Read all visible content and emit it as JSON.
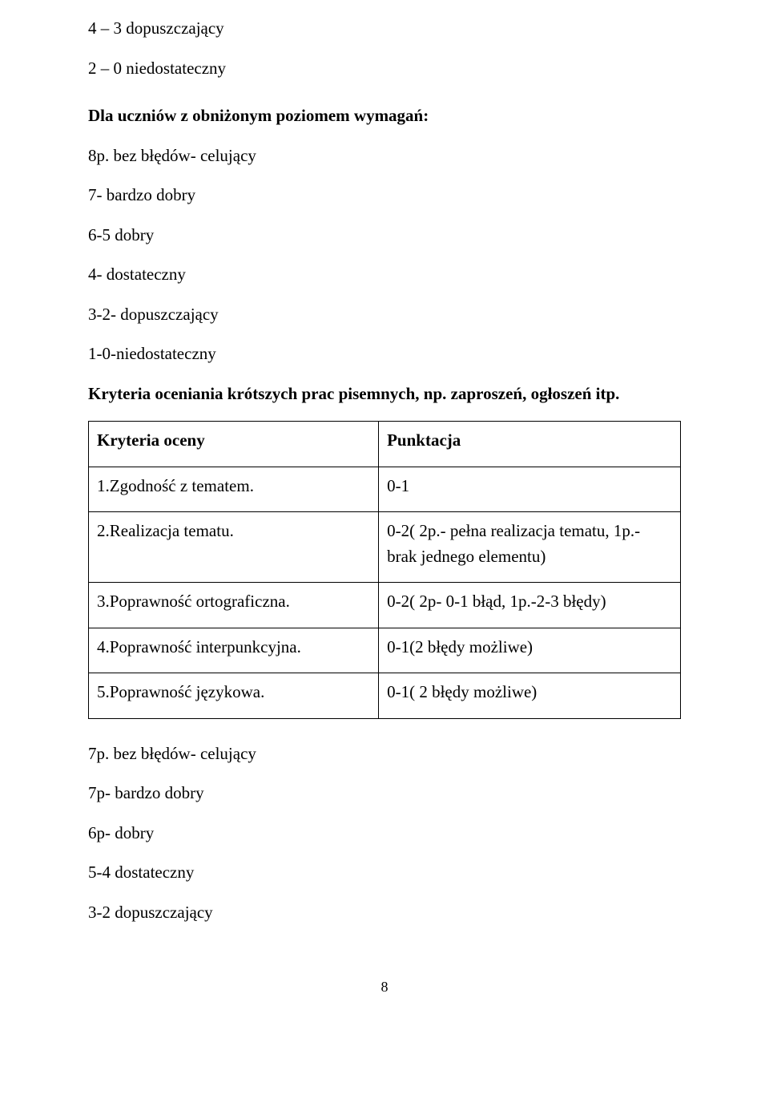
{
  "list_before": [
    "4 – 3     dopuszczający",
    "2 – 0     niedostateczny"
  ],
  "heading1": "Dla uczniów z obniżonym poziomem wymagań:",
  "list_mid": [
    "8p. bez błędów- celujący",
    "7- bardzo dobry",
    "6-5 dobry",
    "4- dostateczny",
    "3-2- dopuszczający",
    "1-0-niedostateczny"
  ],
  "heading2": "Kryteria oceniania krótszych prac pisemnych, np. zaproszeń, ogłoszeń itp.",
  "table": {
    "header_left": "Kryteria oceny",
    "header_right": "Punktacja",
    "rows": [
      {
        "left": "1.Zgodność z tematem.",
        "right": "0-1"
      },
      {
        "left": "2.Realizacja tematu.",
        "right": "0-2( 2p.- pełna realizacja tematu, 1p.- brak jednego elementu)"
      },
      {
        "left": "3.Poprawność ortograficzna.",
        "right": "0-2( 2p- 0-1 błąd, 1p.-2-3 błędy)"
      },
      {
        "left": "4.Poprawność interpunkcyjna.",
        "right": "0-1(2 błędy możliwe)"
      },
      {
        "left": "5.Poprawność językowa.",
        "right": "0-1( 2 błędy możliwe)"
      }
    ]
  },
  "list_after": [
    "7p. bez błędów- celujący",
    "7p-     bardzo dobry",
    "6p-  dobry",
    "5-4 dostateczny",
    "3-2  dopuszczający"
  ],
  "page_number": "8"
}
